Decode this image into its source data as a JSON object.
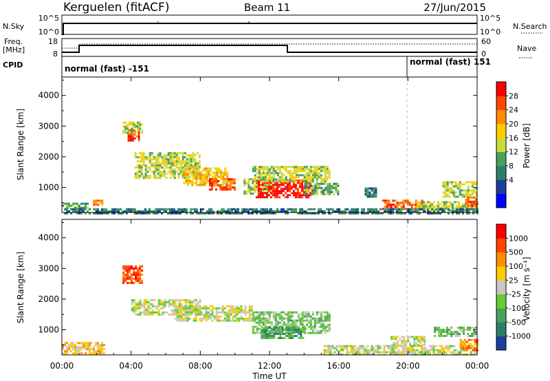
{
  "header": {
    "station": "Kerguelen (fitACF)",
    "beam": "Beam 11",
    "date": "27/Jun/2015"
  },
  "strip_labels": {
    "nsky": "N.Sky",
    "nsky_ticks": [
      "10^5",
      "10^0"
    ],
    "nsearch": "N.Search",
    "nsearch_ticks": [
      "10^5",
      "10^0"
    ],
    "freq_line1": "Freq.",
    "freq_line2": "[MHz]",
    "freq_ticks": [
      "18",
      "8"
    ],
    "nave": "Nave",
    "nave_ticks": [
      "60",
      "0"
    ],
    "cpid": "CPID",
    "cpid_segments": [
      {
        "label": "normal (fast) -151",
        "start_hour": 0
      },
      {
        "label": "normal (fast) 151",
        "start_hour": 20
      }
    ]
  },
  "chart_data": [
    {
      "type": "heatmap",
      "name": "power",
      "ylabel": "Slant Range [km]",
      "xlabel": "",
      "x_ticks": [
        "00:00",
        "04:00",
        "08:00",
        "12:00",
        "16:00",
        "20:00",
        "00:00"
      ],
      "x_tick_hours": [
        0,
        4,
        8,
        12,
        16,
        20,
        24
      ],
      "y_ticks": [
        1000,
        2000,
        3000,
        4000
      ],
      "ylim": [
        180,
        4600
      ],
      "colorbar": {
        "label": "Power [dB]",
        "ticks": [
          "28",
          "24",
          "20",
          "16",
          "12",
          "8",
          "4"
        ],
        "colors": [
          "#0000ff",
          "#1c3f9a",
          "#2e7d6b",
          "#4aa060",
          "#c8dc3c",
          "#ffcc00",
          "#ff8c00",
          "#ff4500",
          "#ff0000"
        ]
      },
      "features": [
        {
          "t0": 0.0,
          "t1": 1.5,
          "r0": 300,
          "r1": 500,
          "level": 3
        },
        {
          "t0": 1.8,
          "t1": 2.6,
          "r0": 400,
          "r1": 600,
          "level": 6
        },
        {
          "t0": 3.8,
          "t1": 4.4,
          "r0": 2500,
          "r1": 2900,
          "level": 7
        },
        {
          "t0": 3.5,
          "t1": 4.6,
          "r0": 2800,
          "r1": 3150,
          "level": 4
        },
        {
          "t0": 4.2,
          "t1": 8.0,
          "r0": 1300,
          "r1": 2150,
          "level": 4
        },
        {
          "t0": 7.0,
          "t1": 9.6,
          "r0": 1100,
          "r1": 1650,
          "level": 5
        },
        {
          "t0": 8.5,
          "t1": 10.0,
          "r0": 900,
          "r1": 1300,
          "level": 7
        },
        {
          "t0": 10.5,
          "t1": 12.2,
          "r0": 800,
          "r1": 1300,
          "level": 4
        },
        {
          "t0": 11.2,
          "t1": 14.5,
          "r0": 650,
          "r1": 1250,
          "level": 8
        },
        {
          "t0": 11.0,
          "t1": 15.5,
          "r0": 1200,
          "r1": 1700,
          "level": 4
        },
        {
          "t0": 14.0,
          "t1": 16.0,
          "r0": 800,
          "r1": 1150,
          "level": 3
        },
        {
          "t0": 17.5,
          "t1": 18.2,
          "r0": 700,
          "r1": 1000,
          "level": 2
        },
        {
          "t0": 18.5,
          "t1": 20.8,
          "r0": 300,
          "r1": 600,
          "level": 7
        },
        {
          "t0": 20.5,
          "t1": 24.0,
          "r0": 250,
          "r1": 550,
          "level": 4
        },
        {
          "t0": 22.0,
          "t1": 24.0,
          "r0": 700,
          "r1": 1200,
          "level": 4
        },
        {
          "t0": 23.3,
          "t1": 24.0,
          "r0": 350,
          "r1": 700,
          "level": 7
        },
        {
          "t0": 0.0,
          "t1": 24.0,
          "r0": 180,
          "r1": 320,
          "level": 2
        }
      ]
    },
    {
      "type": "heatmap",
      "name": "velocity",
      "ylabel": "Slant Range [km]",
      "xlabel": "Time UT",
      "x_ticks": [
        "00:00",
        "04:00",
        "08:00",
        "12:00",
        "16:00",
        "20:00",
        "00:00"
      ],
      "x_tick_hours": [
        0,
        4,
        8,
        12,
        16,
        20,
        24
      ],
      "y_ticks": [
        1000,
        2000,
        3000,
        4000
      ],
      "ylim": [
        180,
        4600
      ],
      "colorbar": {
        "label": "Velocity [m s⁻¹]",
        "ticks": [
          "1000",
          "500",
          "100",
          "25",
          "-25",
          "-100",
          "-500",
          "-1000"
        ],
        "colors": [
          "#1c3f9a",
          "#2e7d6b",
          "#4aa060",
          "#66cc33",
          "#c8c8c0",
          "#ffcc00",
          "#ff8c00",
          "#ff4500",
          "#ff0000"
        ]
      },
      "features": [
        {
          "t0": 0.0,
          "t1": 2.5,
          "r0": 250,
          "r1": 600,
          "level": 5
        },
        {
          "t0": 3.5,
          "t1": 4.6,
          "r0": 2500,
          "r1": 3100,
          "level": 7
        },
        {
          "t0": 4.0,
          "t1": 8.0,
          "r0": 1500,
          "r1": 2000,
          "level": 4
        },
        {
          "t0": 6.5,
          "t1": 11.0,
          "r0": 1300,
          "r1": 1800,
          "level": 4
        },
        {
          "t0": 11.0,
          "t1": 15.5,
          "r0": 900,
          "r1": 1600,
          "level": 3
        },
        {
          "t0": 11.5,
          "t1": 14.0,
          "r0": 700,
          "r1": 1100,
          "level": 2
        },
        {
          "t0": 15.0,
          "t1": 24.0,
          "r0": 200,
          "r1": 500,
          "level": 4
        },
        {
          "t0": 19.0,
          "t1": 21.0,
          "r0": 500,
          "r1": 800,
          "level": 4
        },
        {
          "t0": 21.5,
          "t1": 24.0,
          "r0": 800,
          "r1": 1100,
          "level": 3
        },
        {
          "t0": 23.0,
          "t1": 24.0,
          "r0": 300,
          "r1": 700,
          "level": 6
        }
      ]
    }
  ]
}
